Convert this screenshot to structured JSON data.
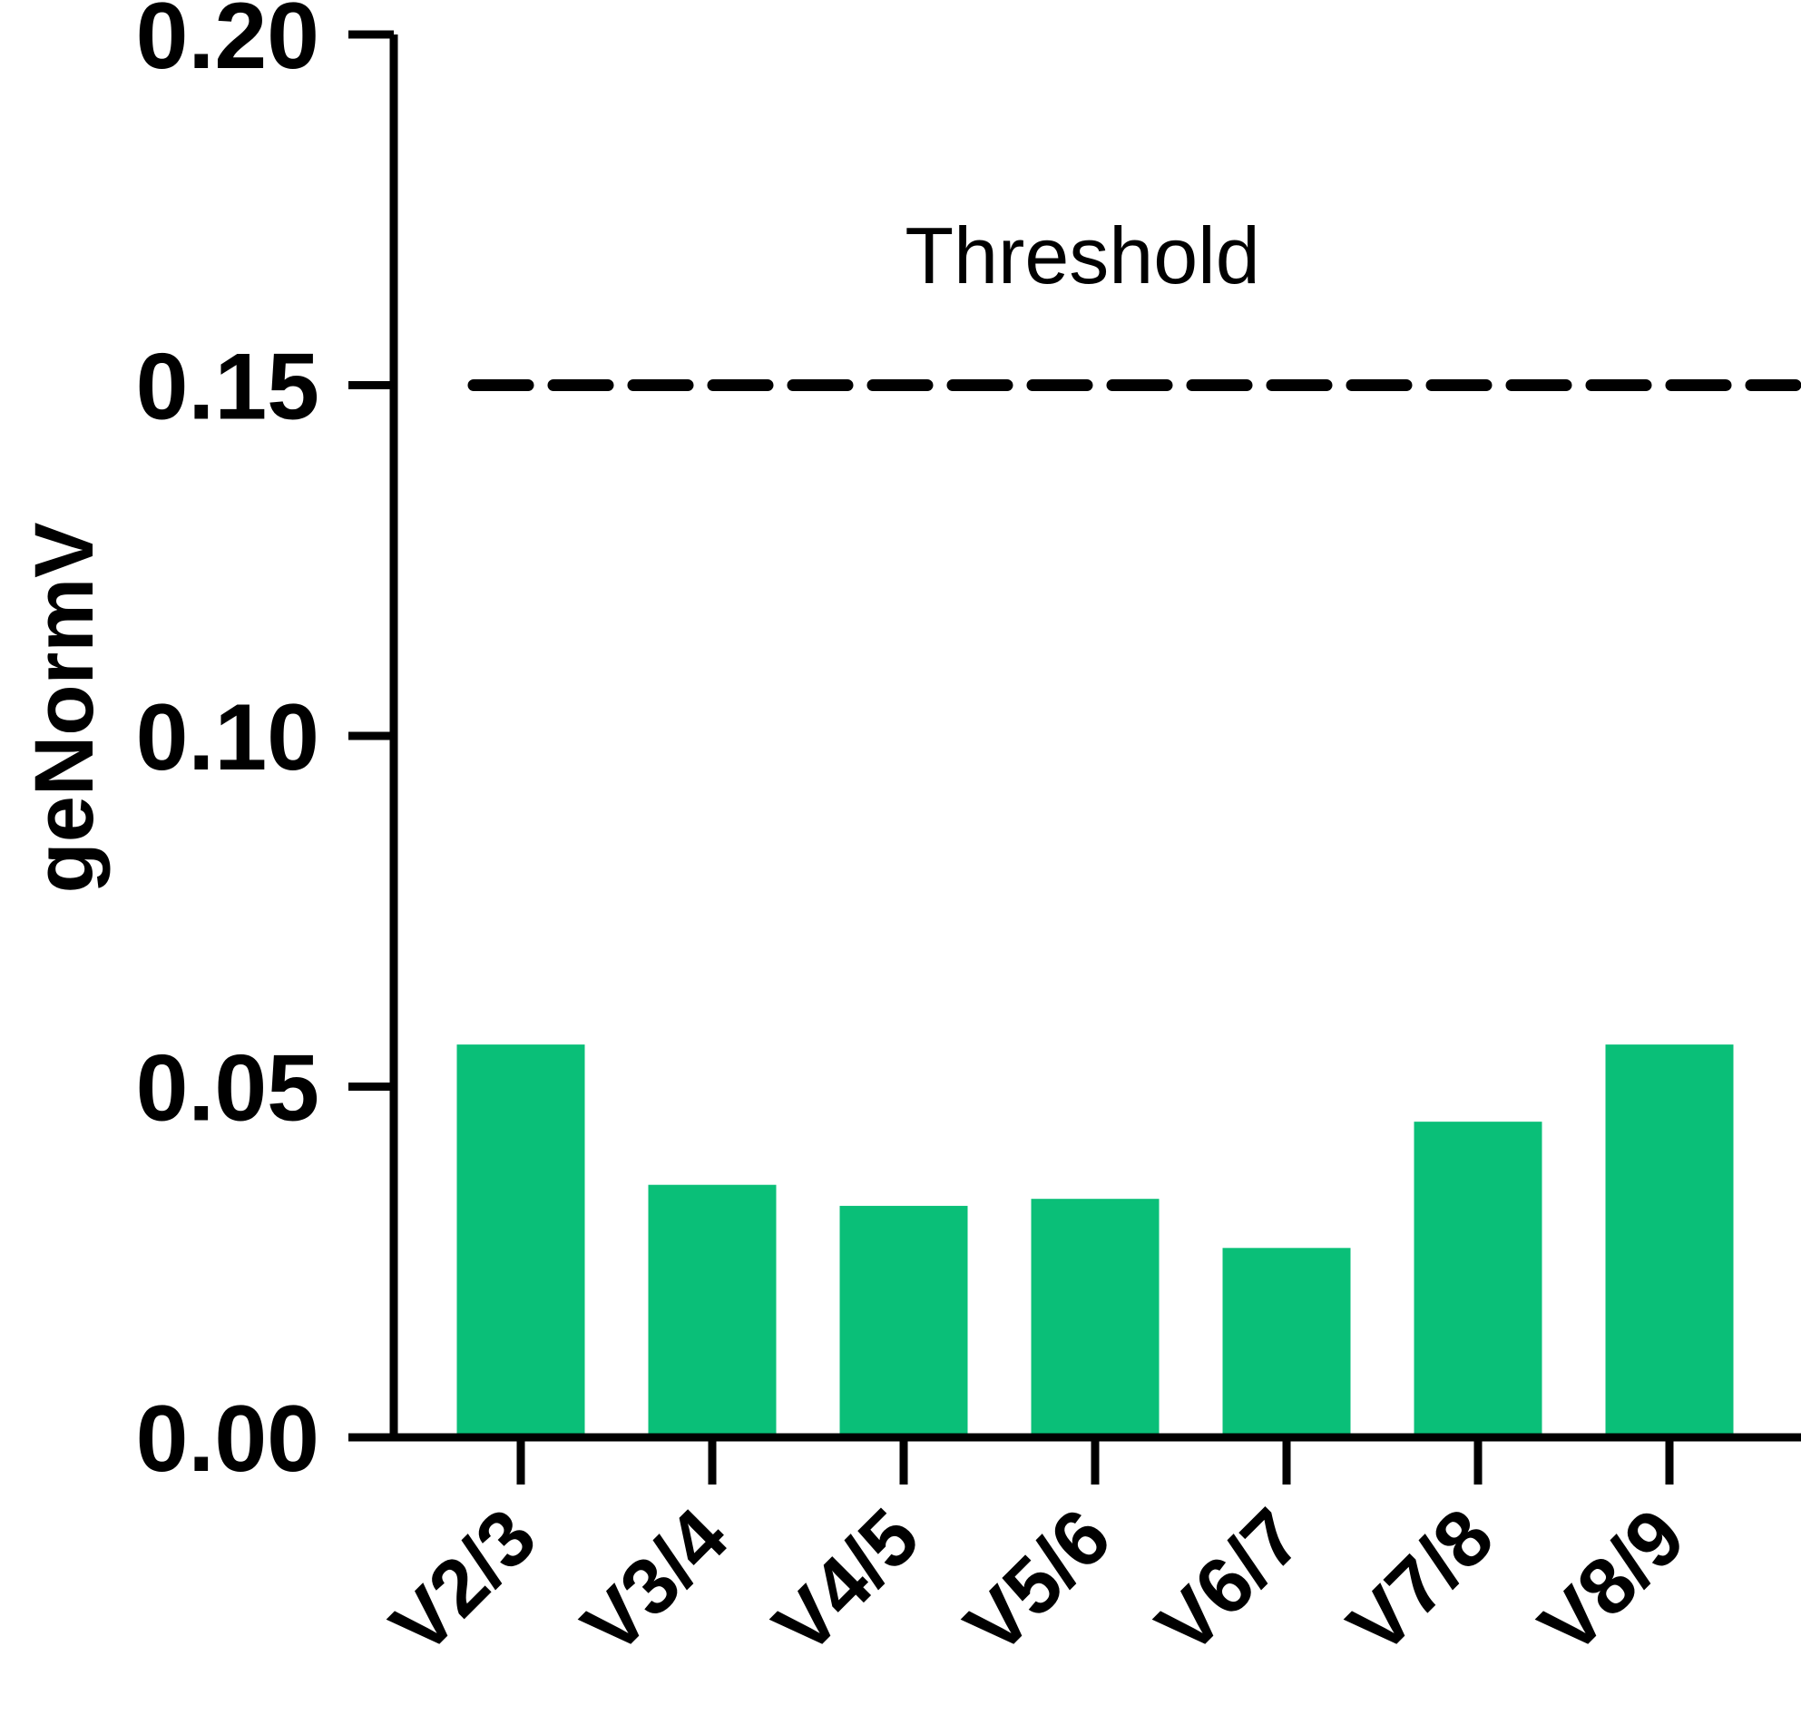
{
  "chart_data": {
    "type": "bar",
    "categories": [
      "V2/3",
      "V3/4",
      "V4/5",
      "V5/6",
      "V6/7",
      "V7/8",
      "V8/9"
    ],
    "values": [
      0.056,
      0.036,
      0.033,
      0.034,
      0.027,
      0.045,
      0.056
    ],
    "ylabel": "geNormV",
    "ylim": [
      0,
      0.2
    ],
    "yticks": [
      "0.00",
      "0.05",
      "0.10",
      "0.15",
      "0.20"
    ],
    "bar_color": "#0abf78",
    "threshold": {
      "value": 0.15,
      "label": "Threshold",
      "style": "dashed"
    },
    "grid": false
  }
}
